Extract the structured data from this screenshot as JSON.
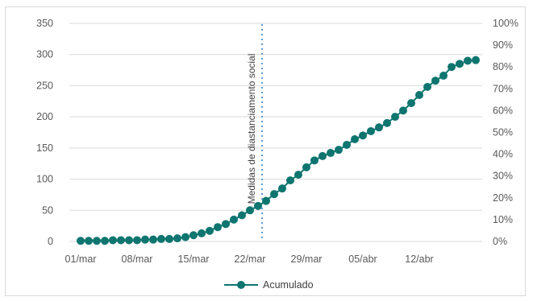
{
  "chart_data": {
    "type": "line",
    "x": [
      "01/mar",
      "02/mar",
      "03/mar",
      "04/mar",
      "05/mar",
      "06/mar",
      "07/mar",
      "08/mar",
      "09/mar",
      "10/mar",
      "11/mar",
      "12/mar",
      "13/mar",
      "14/mar",
      "15/mar",
      "16/mar",
      "17/mar",
      "18/mar",
      "19/mar",
      "20/mar",
      "21/mar",
      "22/mar",
      "23/mar",
      "24/mar",
      "25/mar",
      "26/mar",
      "27/mar",
      "28/mar",
      "29/mar",
      "30/mar",
      "31/mar",
      "01/abr",
      "02/abr",
      "03/abr",
      "04/abr",
      "05/abr",
      "06/abr",
      "07/abr",
      "08/abr",
      "09/abr",
      "10/abr",
      "11/abr",
      "12/abr",
      "13/abr",
      "14/abr",
      "15/abr",
      "16/abr",
      "17/abr",
      "18/abr",
      "19/abr"
    ],
    "x_tick_labels": [
      "01/mar",
      "08/mar",
      "15/mar",
      "22/mar",
      "29/mar",
      "05/abr",
      "12/abr"
    ],
    "series": [
      {
        "name": "Acumulado",
        "color": "#0e7570",
        "values": [
          1,
          1,
          1,
          1,
          2,
          2,
          2,
          2,
          3,
          3,
          4,
          4,
          5,
          7,
          10,
          13,
          17,
          23,
          28,
          35,
          42,
          50,
          57,
          65,
          76,
          85,
          98,
          107,
          119,
          130,
          137,
          142,
          147,
          155,
          164,
          170,
          177,
          183,
          190,
          200,
          210,
          222,
          235,
          248,
          258,
          266,
          280,
          285,
          290,
          291
        ]
      }
    ],
    "ylim": [
      0,
      350
    ],
    "y_ticks": [
      "0",
      "50",
      "100",
      "150",
      "200",
      "250",
      "300",
      "350"
    ],
    "y2lim": [
      0,
      1
    ],
    "y2_ticks": [
      "0%",
      "10%",
      "20%",
      "30%",
      "40%",
      "50%",
      "60%",
      "70%",
      "80%",
      "90%",
      "100%"
    ],
    "grid": true,
    "legend": "bottom",
    "annotation": {
      "text": "Medidas de diastanciamento social",
      "color": "#5b9bd5"
    }
  }
}
